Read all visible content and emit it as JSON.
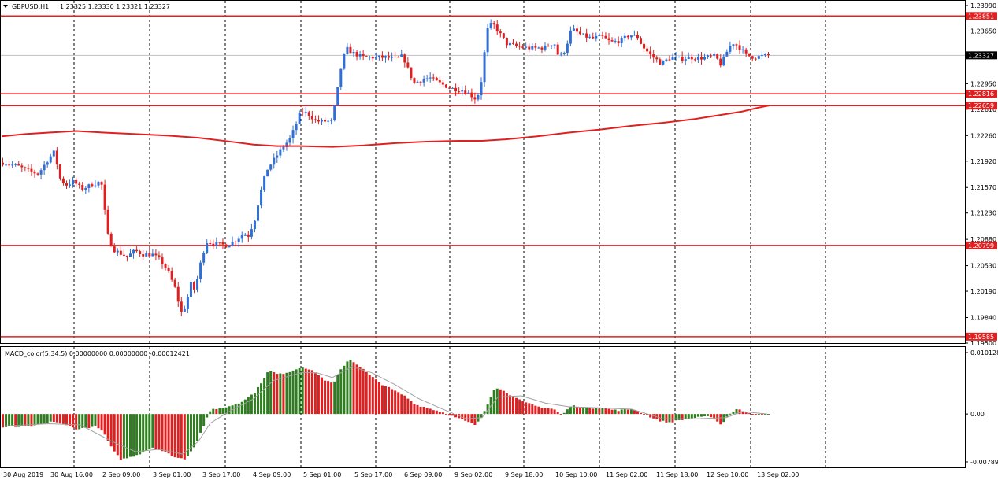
{
  "header": {
    "symbol": "GBPUSD,H1",
    "ohlc": "1.23325 1.23330 1.23321 1.23327"
  },
  "indicator": {
    "label": "MACD_color(5,34,5) 0.00000000 0.00000000 -0.00012421"
  },
  "colors": {
    "bull": "#2f6fd6",
    "bear": "#e02020",
    "level": "#e02020",
    "ma": "#e02020",
    "macd_pos": "#2e7d1f",
    "macd_neg": "#e02020",
    "signal": "#a0a0a0",
    "grid": "#000000",
    "price_line": "#c0c0c0"
  },
  "chart_data": [
    {
      "type": "candlestick",
      "symbol": "GBPUSD",
      "timeframe": "H1",
      "y_ticks": [
        "1.23990",
        "1.23650",
        "1.22950",
        "1.22610",
        "1.22260",
        "1.21920",
        "1.21570",
        "1.21230",
        "1.20880",
        "1.20530",
        "1.20190",
        "1.19840",
        "1.19500"
      ],
      "ylim": [
        1.195,
        1.2399
      ],
      "x_ticks": [
        "30 Aug 2019",
        "30 Aug 16:00",
        "2 Sep 09:00",
        "3 Sep 01:00",
        "3 Sep 17:00",
        "4 Sep 09:00",
        "5 Sep 01:00",
        "5 Sep 17:00",
        "6 Sep 09:00",
        "9 Sep 02:00",
        "9 Sep 18:00",
        "10 Sep 10:00",
        "11 Sep 02:00",
        "11 Sep 18:00",
        "12 Sep 10:00",
        "13 Sep 02:00"
      ],
      "horizontal_levels": [
        {
          "value": 1.23851,
          "label": "1.23851"
        },
        {
          "value": 1.22816,
          "label": "1.22816"
        },
        {
          "value": 1.22659,
          "label": "1.22659"
        },
        {
          "value": 1.20799,
          "label": "1.20799"
        },
        {
          "value": 1.19585,
          "label": "1.19585"
        }
      ],
      "current_price": {
        "value": 1.23327,
        "label": "1.23327"
      },
      "close_path": [
        [
          0,
          1.219
        ],
        [
          20,
          1.2185
        ],
        [
          30,
          1.218
        ],
        [
          45,
          1.2175
        ],
        [
          58,
          1.2195
        ],
        [
          66,
          1.2205
        ],
        [
          72,
          1.217
        ],
        [
          80,
          1.216
        ],
        [
          90,
          1.2165
        ],
        [
          100,
          1.2155
        ],
        [
          112,
          1.216
        ],
        [
          125,
          1.2165
        ],
        [
          133,
          1.2095
        ],
        [
          140,
          1.2075
        ],
        [
          148,
          1.207
        ],
        [
          158,
          1.2065
        ],
        [
          168,
          1.2073
        ],
        [
          178,
          1.2068
        ],
        [
          190,
          1.2068
        ],
        [
          200,
          1.206
        ],
        [
          210,
          1.2045
        ],
        [
          220,
          1.202
        ],
        [
          226,
          1.199
        ],
        [
          233,
          1.2
        ],
        [
          238,
          1.203
        ],
        [
          244,
          1.202
        ],
        [
          252,
          1.206
        ],
        [
          258,
          1.2085
        ],
        [
          270,
          1.2082
        ],
        [
          284,
          1.208
        ],
        [
          296,
          1.2087
        ],
        [
          305,
          1.2095
        ],
        [
          312,
          1.2093
        ],
        [
          320,
          1.2115
        ],
        [
          326,
          1.2145
        ],
        [
          335,
          1.218
        ],
        [
          345,
          1.2195
        ],
        [
          355,
          1.221
        ],
        [
          365,
          1.2222
        ],
        [
          372,
          1.224
        ],
        [
          378,
          1.2258
        ],
        [
          388,
          1.2255
        ],
        [
          398,
          1.2245
        ],
        [
          408,
          1.2245
        ],
        [
          418,
          1.2245
        ],
        [
          424,
          1.228
        ],
        [
          430,
          1.232
        ],
        [
          436,
          1.2342
        ],
        [
          446,
          1.2335
        ],
        [
          458,
          1.233
        ],
        [
          470,
          1.233
        ],
        [
          486,
          1.233
        ],
        [
          500,
          1.2328
        ],
        [
          508,
          1.2332
        ],
        [
          516,
          1.231
        ],
        [
          522,
          1.2296
        ],
        [
          532,
          1.23
        ],
        [
          542,
          1.2303
        ],
        [
          550,
          1.2298
        ],
        [
          560,
          1.2293
        ],
        [
          572,
          1.2288
        ],
        [
          582,
          1.2287
        ],
        [
          592,
          1.2282
        ],
        [
          600,
          1.2275
        ],
        [
          606,
          1.2285
        ],
        [
          612,
          1.234
        ],
        [
          616,
          1.237
        ],
        [
          622,
          1.2375
        ],
        [
          630,
          1.2363
        ],
        [
          640,
          1.2348
        ],
        [
          656,
          1.2344
        ],
        [
          670,
          1.2342
        ],
        [
          688,
          1.2343
        ],
        [
          700,
          1.235
        ],
        [
          706,
          1.233
        ],
        [
          714,
          1.234
        ],
        [
          722,
          1.2368
        ],
        [
          734,
          1.236
        ],
        [
          748,
          1.2355
        ],
        [
          760,
          1.2358
        ],
        [
          772,
          1.235
        ],
        [
          784,
          1.2352
        ],
        [
          796,
          1.236
        ],
        [
          806,
          1.2357
        ],
        [
          812,
          1.2345
        ],
        [
          818,
          1.2338
        ],
        [
          826,
          1.233
        ],
        [
          836,
          1.2322
        ],
        [
          848,
          1.233
        ],
        [
          860,
          1.2328
        ],
        [
          872,
          1.233
        ],
        [
          884,
          1.2329
        ],
        [
          894,
          1.233
        ],
        [
          904,
          1.2332
        ],
        [
          912,
          1.232
        ],
        [
          918,
          1.2335
        ],
        [
          926,
          1.235
        ],
        [
          934,
          1.2345
        ],
        [
          944,
          1.2333
        ],
        [
          954,
          1.233
        ],
        [
          966,
          1.2332
        ],
        [
          972,
          1.23327
        ]
      ],
      "moving_average": [
        [
          0,
          1.2225
        ],
        [
          30,
          1.2228
        ],
        [
          60,
          1.223
        ],
        [
          95,
          1.2232
        ],
        [
          130,
          1.223
        ],
        [
          170,
          1.2228
        ],
        [
          210,
          1.2226
        ],
        [
          250,
          1.2223
        ],
        [
          290,
          1.2218
        ],
        [
          320,
          1.2214
        ],
        [
          350,
          1.2212
        ],
        [
          380,
          1.2212
        ],
        [
          420,
          1.2211
        ],
        [
          460,
          1.2213
        ],
        [
          500,
          1.2216
        ],
        [
          540,
          1.2218
        ],
        [
          580,
          1.2219
        ],
        [
          610,
          1.2219
        ],
        [
          640,
          1.2221
        ],
        [
          680,
          1.2225
        ],
        [
          720,
          1.223
        ],
        [
          760,
          1.2234
        ],
        [
          800,
          1.2239
        ],
        [
          840,
          1.2243
        ],
        [
          880,
          1.2248
        ],
        [
          910,
          1.2253
        ],
        [
          940,
          1.2258
        ],
        [
          960,
          1.2263
        ],
        [
          975,
          1.2266
        ]
      ]
    },
    {
      "type": "bar",
      "name": "MACD_color(5,34,5)",
      "y_ticks": [
        "0.010128",
        "0.00",
        "-0.00789"
      ],
      "ylim": [
        -0.00789,
        0.010128
      ],
      "histogram_path": [
        [
          0,
          -0.0022
        ],
        [
          40,
          -0.002
        ],
        [
          65,
          -0.0012
        ],
        [
          95,
          -0.0025
        ],
        [
          120,
          -0.002
        ],
        [
          130,
          -0.0035
        ],
        [
          140,
          -0.006
        ],
        [
          150,
          -0.0075
        ],
        [
          160,
          -0.0072
        ],
        [
          175,
          -0.0065
        ],
        [
          190,
          -0.0055
        ],
        [
          205,
          -0.0062
        ],
        [
          220,
          -0.0072
        ],
        [
          232,
          -0.0074
        ],
        [
          245,
          -0.005
        ],
        [
          258,
          -0.001
        ],
        [
          265,
          0.0008
        ],
        [
          280,
          0.001
        ],
        [
          300,
          0.0018
        ],
        [
          320,
          0.0035
        ],
        [
          338,
          0.0072
        ],
        [
          350,
          0.0065
        ],
        [
          365,
          0.007
        ],
        [
          380,
          0.0078
        ],
        [
          395,
          0.007
        ],
        [
          410,
          0.0055
        ],
        [
          420,
          0.005
        ],
        [
          430,
          0.0075
        ],
        [
          440,
          0.0091
        ],
        [
          452,
          0.008
        ],
        [
          465,
          0.0065
        ],
        [
          480,
          0.005
        ],
        [
          495,
          0.004
        ],
        [
          510,
          0.003
        ],
        [
          525,
          0.0015
        ],
        [
          540,
          0.001
        ],
        [
          560,
          0.0002
        ],
        [
          580,
          -0.0008
        ],
        [
          600,
          -0.0018
        ],
        [
          606,
          -0.001
        ],
        [
          614,
          0.0012
        ],
        [
          625,
          0.0045
        ],
        [
          640,
          0.0035
        ],
        [
          660,
          0.002
        ],
        [
          680,
          0.0012
        ],
        [
          700,
          0.0008
        ],
        [
          710,
          -0.0002
        ],
        [
          722,
          0.0014
        ],
        [
          740,
          0.001
        ],
        [
          760,
          0.001
        ],
        [
          780,
          0.0006
        ],
        [
          800,
          0.0008
        ],
        [
          815,
          0.0
        ],
        [
          830,
          -0.001
        ],
        [
          845,
          -0.0014
        ],
        [
          860,
          -0.001
        ],
        [
          880,
          -0.0006
        ],
        [
          900,
          -0.0004
        ],
        [
          912,
          -0.0018
        ],
        [
          922,
          0.0
        ],
        [
          932,
          0.0008
        ],
        [
          945,
          0.0003
        ],
        [
          960,
          -0.0002
        ],
        [
          972,
          -0.00012
        ]
      ],
      "signal_path": [
        [
          0,
          -0.002
        ],
        [
          60,
          -0.0016
        ],
        [
          100,
          -0.0018
        ],
        [
          140,
          -0.0045
        ],
        [
          170,
          -0.0062
        ],
        [
          200,
          -0.0058
        ],
        [
          230,
          -0.0066
        ],
        [
          250,
          -0.0045
        ],
        [
          265,
          -0.0015
        ],
        [
          290,
          0.0005
        ],
        [
          320,
          0.0025
        ],
        [
          345,
          0.0055
        ],
        [
          380,
          0.0068
        ],
        [
          400,
          0.0068
        ],
        [
          420,
          0.006
        ],
        [
          445,
          0.0078
        ],
        [
          470,
          0.0068
        ],
        [
          500,
          0.0048
        ],
        [
          530,
          0.0025
        ],
        [
          560,
          0.0008
        ],
        [
          590,
          -0.0008
        ],
        [
          610,
          -0.0006
        ],
        [
          630,
          0.0028
        ],
        [
          660,
          0.003
        ],
        [
          690,
          0.0018
        ],
        [
          720,
          0.0012
        ],
        [
          760,
          0.001
        ],
        [
          800,
          0.0008
        ],
        [
          840,
          -0.0008
        ],
        [
          880,
          -0.0008
        ],
        [
          920,
          -0.0006
        ],
        [
          940,
          0.0004
        ],
        [
          972,
          0.0
        ]
      ]
    }
  ]
}
